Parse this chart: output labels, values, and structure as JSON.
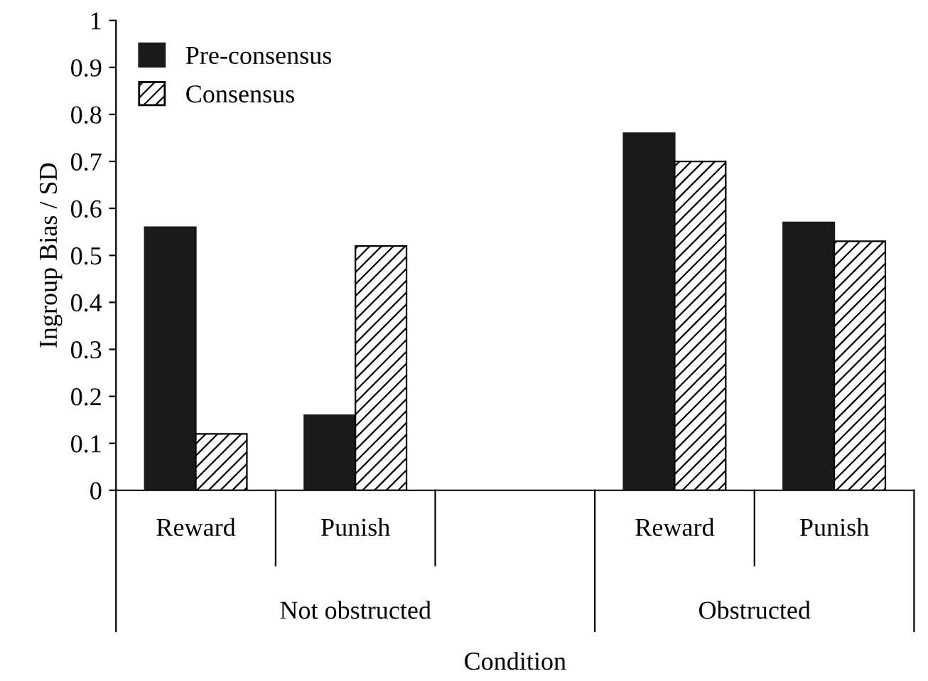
{
  "chart_data": {
    "type": "bar",
    "xlabel": "Condition",
    "ylabel": "Ingroup Bias / SD",
    "categories": [
      "Reward",
      "Punish",
      null,
      "Reward",
      "Punish"
    ],
    "series": [
      {
        "name": "Pre-consensus",
        "color": "#1a1a1a",
        "values": [
          0.56,
          0.16,
          null,
          0.76,
          0.57
        ]
      },
      {
        "name": "Consensus",
        "color": "#000000",
        "values": [
          0.12,
          0.52,
          null,
          0.7,
          0.53
        ]
      }
    ],
    "annotations": [
      "Not obstructed",
      "Obstructed"
    ],
    "ylim": [
      0,
      1
    ],
    "yticks": [
      0,
      0.1,
      0.2,
      0.3,
      0.4,
      0.5,
      0.6,
      0.7,
      0.8,
      0.9,
      1
    ],
    "legend": "top left",
    "grid": false
  }
}
